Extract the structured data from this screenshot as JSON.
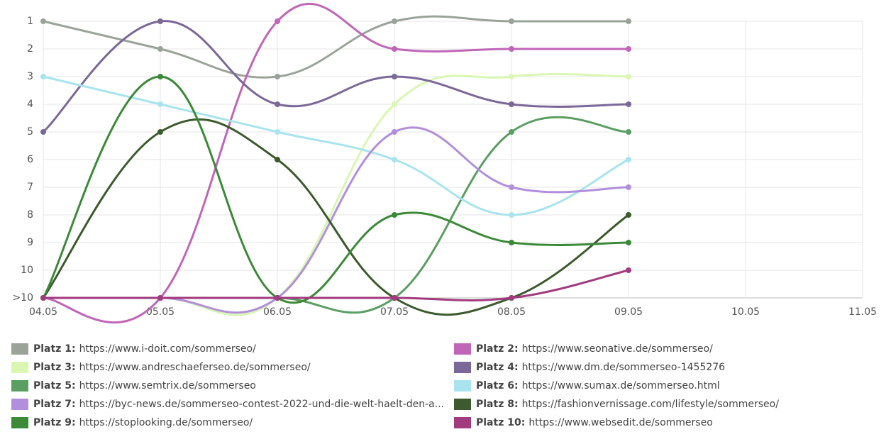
{
  "chart_data": {
    "type": "line",
    "categories": [
      "04.05",
      "05.05",
      "06.05",
      "07.05",
      "08.05",
      "09.05",
      "10.05",
      "11.05"
    ],
    "ylim": [
      11,
      1
    ],
    "yticks": [
      1,
      2,
      3,
      4,
      5,
      6,
      7,
      8,
      9,
      10,
      {
        "value": 11,
        "label": ">10"
      }
    ],
    "grid": true,
    "series": [
      {
        "name": "Platz 1:",
        "url": "https://www.i-doit.com/sommerseo/",
        "color": "#9aa39a",
        "values": [
          1,
          2,
          3,
          1,
          1,
          1,
          null,
          null
        ]
      },
      {
        "name": "Platz 2:",
        "url": "https://www.seonative.de/sommerseo/",
        "color": "#c066b8",
        "values": [
          11,
          11,
          1,
          2,
          2,
          2,
          null,
          null
        ]
      },
      {
        "name": "Platz 3:",
        "url": "https://www.andreschaeferseo.de/sommerseo/",
        "color": "#d9f7b2",
        "values": [
          11,
          11,
          11,
          4,
          3,
          3,
          null,
          null
        ]
      },
      {
        "name": "Platz 4:",
        "url": "https://www.dm.de/sommerseo-1455276",
        "color": "#7a6898",
        "values": [
          5,
          1,
          4,
          3,
          4,
          4,
          null,
          null
        ]
      },
      {
        "name": "Platz 5:",
        "url": "https://www.semtrix.de/sommerseo",
        "color": "#5a9e62",
        "values": [
          11,
          11,
          11,
          11,
          5,
          5,
          null,
          null
        ]
      },
      {
        "name": "Platz 6:",
        "url": "https://www.sumax.de/sommerseo.html",
        "color": "#a8e4ee",
        "values": [
          3,
          4,
          5,
          6,
          8,
          6,
          null,
          null
        ]
      },
      {
        "name": "Platz 7:",
        "url": "https://byc-news.de/sommerseo-contest-2022-und-die-welt-haelt-den-a...",
        "color": "#b28fdc",
        "values": [
          11,
          11,
          11,
          5,
          7,
          7,
          null,
          null
        ]
      },
      {
        "name": "Platz 8:",
        "url": "https://fashionvernissage.com/lifestyle/sommerseo/",
        "color": "#3d5a2e",
        "values": [
          11,
          5,
          6,
          11,
          11,
          8,
          null,
          null
        ]
      },
      {
        "name": "Platz 9:",
        "url": "https://stoplooking.de/sommerseo/",
        "color": "#3c8a38",
        "values": [
          11,
          3,
          11,
          8,
          9,
          9,
          null,
          null
        ]
      },
      {
        "name": "Platz 10:",
        "url": "https://www.websedit.de/sommerseo",
        "color": "#a23a7e",
        "values": [
          11,
          11,
          11,
          11,
          11,
          10,
          null,
          null
        ]
      }
    ]
  }
}
